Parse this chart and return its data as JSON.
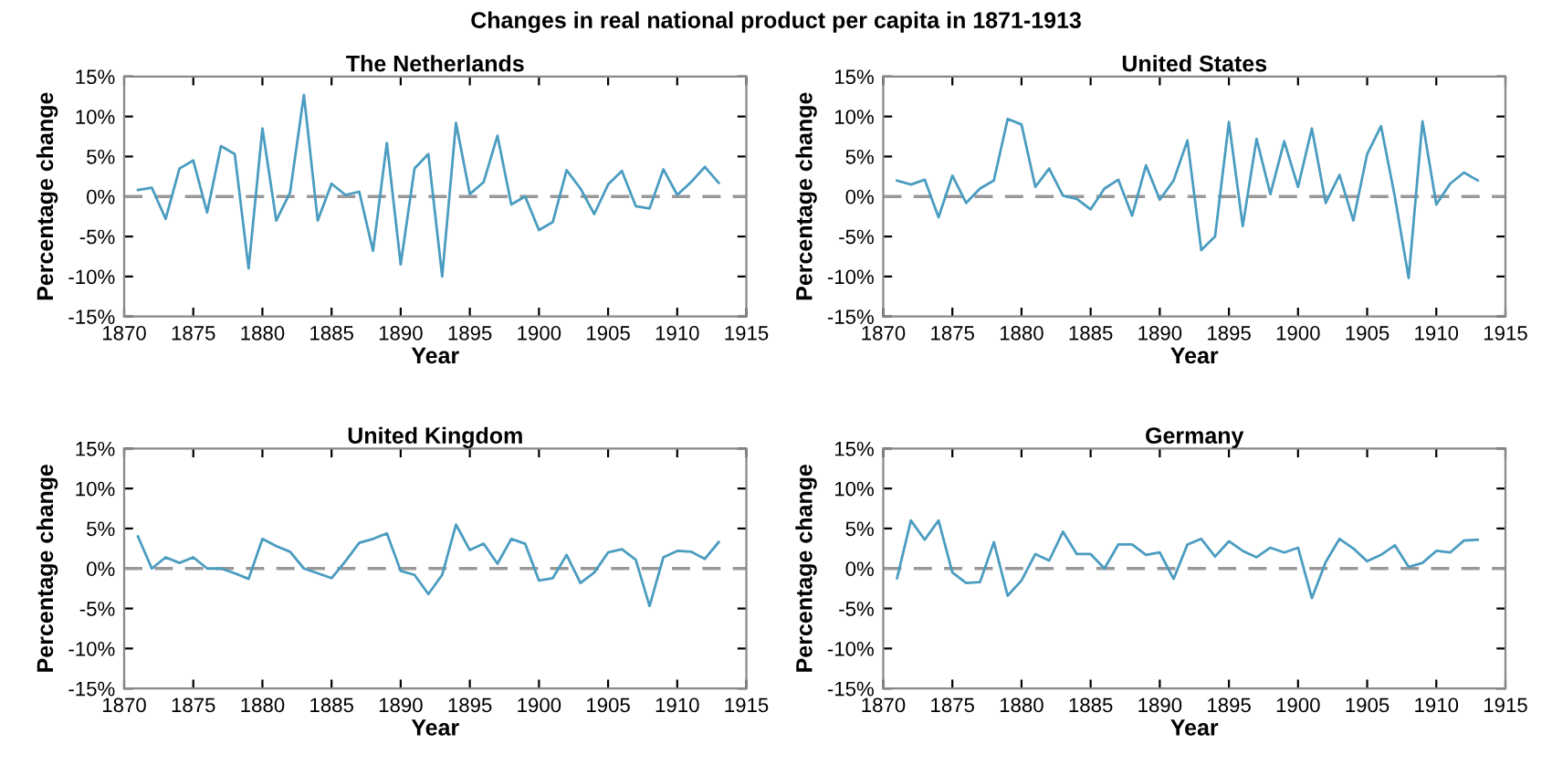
{
  "chart_data": [
    {
      "type": "line",
      "title": "The Netherlands",
      "xlabel": "Year",
      "ylabel": "Percentage change",
      "annotations": [
        "Changes in real national product per capita in 1871-1913"
      ],
      "x": [
        1871,
        1872,
        1873,
        1874,
        1875,
        1876,
        1877,
        1878,
        1879,
        1880,
        1881,
        1882,
        1883,
        1884,
        1885,
        1886,
        1887,
        1888,
        1889,
        1890,
        1891,
        1892,
        1893,
        1894,
        1895,
        1896,
        1897,
        1898,
        1899,
        1900,
        1901,
        1902,
        1903,
        1904,
        1905,
        1906,
        1907,
        1908,
        1909,
        1910,
        1911,
        1912,
        1913
      ],
      "series": [
        {
          "color": "#4a9cc0",
          "values": [
            0.8,
            1.1,
            -2.8,
            3.5,
            4.5,
            -2,
            6.3,
            5.3,
            -9,
            8.5,
            -3,
            0.5,
            12.7,
            -3,
            1.6,
            0.2,
            0.6,
            -6.8,
            6.7,
            -8.5,
            3.5,
            5.3,
            -10,
            9.2,
            0.3,
            1.8,
            7.6,
            -1,
            0,
            -4.2,
            -3.2,
            3.3,
            1,
            -2.2,
            1.5,
            3.2,
            -1.2,
            -1.5,
            3.4,
            0.2,
            1.8,
            3.7,
            1.7
          ]
        }
      ],
      "xlim": [
        1870,
        1915
      ],
      "xticks": [
        1870,
        1875,
        1880,
        1885,
        1890,
        1895,
        1900,
        1905,
        1910,
        1915
      ],
      "ylim": [
        -15,
        15
      ],
      "yticks": [
        {
          "value": -15,
          "label": "-15%"
        },
        {
          "value": -10,
          "label": "-10%"
        },
        {
          "value": -5,
          "label": "-5%"
        },
        {
          "value": 0,
          "label": "0%"
        },
        {
          "value": 5,
          "label": "5%"
        },
        {
          "value": 10,
          "label": "10%"
        },
        {
          "value": 15,
          "label": "15%"
        }
      ],
      "ref_lines": [
        {
          "axis": "y",
          "value": 0,
          "color": "#999999",
          "line_style": "dashed"
        }
      ],
      "grid": false
    },
    {
      "type": "line",
      "title": "United States",
      "xlabel": "Year",
      "ylabel": "Percentage change",
      "x": [
        1871,
        1872,
        1873,
        1874,
        1875,
        1876,
        1877,
        1878,
        1879,
        1880,
        1881,
        1882,
        1883,
        1884,
        1885,
        1886,
        1887,
        1888,
        1889,
        1890,
        1891,
        1892,
        1893,
        1894,
        1895,
        1896,
        1897,
        1898,
        1899,
        1900,
        1901,
        1902,
        1903,
        1904,
        1905,
        1906,
        1907,
        1908,
        1909,
        1910,
        1911,
        1912,
        1913
      ],
      "series": [
        {
          "color": "#4a9cc0",
          "values": [
            2,
            1.5,
            2.1,
            -2.6,
            2.6,
            -0.8,
            1,
            2,
            9.7,
            9,
            1.2,
            3.5,
            0.1,
            -0.3,
            -1.6,
            1,
            2.1,
            -2.4,
            3.9,
            -0.4,
            2,
            7,
            -6.7,
            -5,
            9.3,
            -3.7,
            7.2,
            0.3,
            6.9,
            1.2,
            8.5,
            -0.8,
            2.7,
            -3,
            5.3,
            8.8,
            0,
            -10.2,
            9.4,
            -1,
            1.6,
            3,
            2
          ]
        }
      ],
      "xlim": [
        1870,
        1915
      ],
      "xticks": [
        1870,
        1875,
        1880,
        1885,
        1890,
        1895,
        1900,
        1905,
        1910,
        1915
      ],
      "ylim": [
        -15,
        15
      ],
      "yticks": [
        {
          "value": -15,
          "label": "-15%"
        },
        {
          "value": -10,
          "label": "-10%"
        },
        {
          "value": -5,
          "label": "-5%"
        },
        {
          "value": 0,
          "label": "0%"
        },
        {
          "value": 5,
          "label": "5%"
        },
        {
          "value": 10,
          "label": "10%"
        },
        {
          "value": 15,
          "label": "15%"
        }
      ],
      "ref_lines": [
        {
          "axis": "y",
          "value": 0,
          "color": "#999999",
          "line_style": "dashed"
        }
      ],
      "grid": false
    },
    {
      "type": "line",
      "title": "United Kingdom",
      "xlabel": "Year",
      "ylabel": "Percentage change",
      "x": [
        1871,
        1872,
        1873,
        1874,
        1875,
        1876,
        1877,
        1878,
        1879,
        1880,
        1881,
        1882,
        1883,
        1884,
        1885,
        1886,
        1887,
        1888,
        1889,
        1890,
        1891,
        1892,
        1893,
        1894,
        1895,
        1896,
        1897,
        1898,
        1899,
        1900,
        1901,
        1902,
        1903,
        1904,
        1905,
        1906,
        1907,
        1908,
        1909,
        1910,
        1911,
        1912,
        1913
      ],
      "series": [
        {
          "color": "#4a9cc0",
          "values": [
            4,
            0,
            1.4,
            0.7,
            1.4,
            0,
            0,
            -0.6,
            -1.3,
            3.7,
            2.8,
            2.1,
            0,
            -0.6,
            -1.2,
            0.9,
            3.2,
            3.7,
            4.4,
            -0.3,
            -0.8,
            -3.2,
            -0.8,
            5.5,
            2.3,
            3.1,
            0.6,
            3.7,
            3.1,
            -1.5,
            -1.2,
            1.7,
            -1.8,
            -0.5,
            2,
            2.4,
            1.1,
            -4.7,
            1.4,
            2.2,
            2.1,
            1.2,
            3.3
          ]
        }
      ],
      "xlim": [
        1870,
        1915
      ],
      "xticks": [
        1870,
        1875,
        1880,
        1885,
        1890,
        1895,
        1900,
        1905,
        1910,
        1915
      ],
      "ylim": [
        -15,
        15
      ],
      "yticks": [
        {
          "value": -15,
          "label": "-15%"
        },
        {
          "value": -10,
          "label": "-10%"
        },
        {
          "value": -5,
          "label": "-5%"
        },
        {
          "value": 0,
          "label": "0%"
        },
        {
          "value": 5,
          "label": "5%"
        },
        {
          "value": 10,
          "label": "10%"
        },
        {
          "value": 15,
          "label": "15%"
        }
      ],
      "ref_lines": [
        {
          "axis": "y",
          "value": 0,
          "color": "#999999",
          "line_style": "dashed"
        }
      ],
      "grid": false
    },
    {
      "type": "line",
      "title": "Germany",
      "xlabel": "Year",
      "ylabel": "Percentage change",
      "x": [
        1871,
        1872,
        1873,
        1874,
        1875,
        1876,
        1877,
        1878,
        1879,
        1880,
        1881,
        1882,
        1883,
        1884,
        1885,
        1886,
        1887,
        1888,
        1889,
        1890,
        1891,
        1892,
        1893,
        1894,
        1895,
        1896,
        1897,
        1898,
        1899,
        1900,
        1901,
        1902,
        1903,
        1904,
        1905,
        1906,
        1907,
        1908,
        1909,
        1910,
        1911,
        1912,
        1913
      ],
      "series": [
        {
          "color": "#4a9cc0",
          "values": [
            -1.2,
            6,
            3.6,
            6,
            -0.5,
            -1.8,
            -1.7,
            3.3,
            -3.4,
            -1.5,
            1.8,
            1,
            4.6,
            1.8,
            1.8,
            0,
            3,
            3,
            1.7,
            2,
            -1.3,
            3,
            3.7,
            1.5,
            3.4,
            2.2,
            1.4,
            2.6,
            2,
            2.6,
            -3.7,
            0.8,
            3.7,
            2.5,
            0.9,
            1.7,
            2.9,
            0.2,
            0.7,
            2.2,
            2,
            3.5,
            3.6
          ]
        }
      ],
      "xlim": [
        1870,
        1915
      ],
      "xticks": [
        1870,
        1875,
        1880,
        1885,
        1890,
        1895,
        1900,
        1905,
        1910,
        1915
      ],
      "ylim": [
        -15,
        15
      ],
      "yticks": [
        {
          "value": -15,
          "label": "-15%"
        },
        {
          "value": -10,
          "label": "-10%"
        },
        {
          "value": -5,
          "label": "-5%"
        },
        {
          "value": 0,
          "label": "0%"
        },
        {
          "value": 5,
          "label": "5%"
        },
        {
          "value": 10,
          "label": "10%"
        },
        {
          "value": 15,
          "label": "15%"
        }
      ],
      "ref_lines": [
        {
          "axis": "y",
          "value": 0,
          "color": "#999999",
          "line_style": "dashed"
        }
      ],
      "grid": false
    }
  ]
}
